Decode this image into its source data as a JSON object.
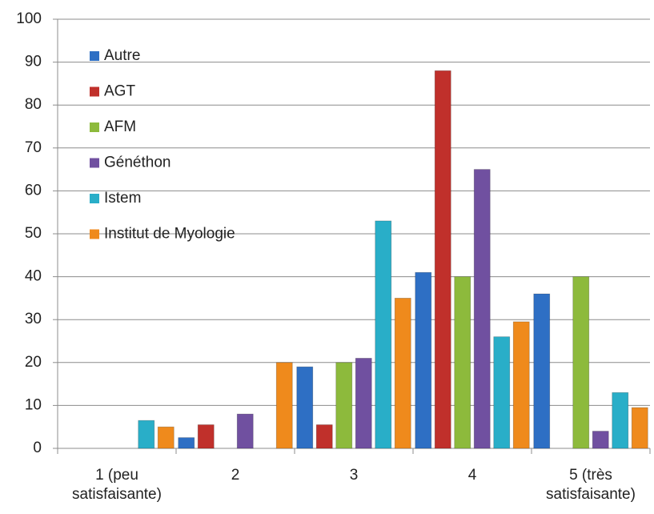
{
  "chart_data": {
    "type": "bar",
    "categories": [
      "1 (peu satisfaisante)",
      "2",
      "3",
      "4",
      "5 (très satisfaisante)"
    ],
    "series": [
      {
        "name": "Autre",
        "color": "#2e6fc4",
        "values": [
          0,
          2.5,
          19,
          41,
          36
        ]
      },
      {
        "name": "AGT",
        "color": "#c0302b",
        "values": [
          0,
          5.5,
          5.5,
          88,
          0
        ]
      },
      {
        "name": "AFM",
        "color": "#8dba3c",
        "values": [
          0,
          0,
          20,
          40,
          40
        ]
      },
      {
        "name": "Généthon",
        "color": "#7050a0",
        "values": [
          0,
          8,
          21,
          65,
          4
        ]
      },
      {
        "name": "Istem",
        "color": "#29aec8",
        "values": [
          6.5,
          0,
          53,
          26,
          13
        ]
      },
      {
        "name": "Institut de Myologie",
        "color": "#ef8a1c",
        "values": [
          5,
          20,
          35,
          29.5,
          9.5
        ]
      }
    ],
    "ylim": [
      0,
      100
    ],
    "yticks": [
      0,
      10,
      20,
      30,
      40,
      50,
      60,
      70,
      80,
      90,
      100
    ],
    "grid": true,
    "legend": "upper left"
  }
}
